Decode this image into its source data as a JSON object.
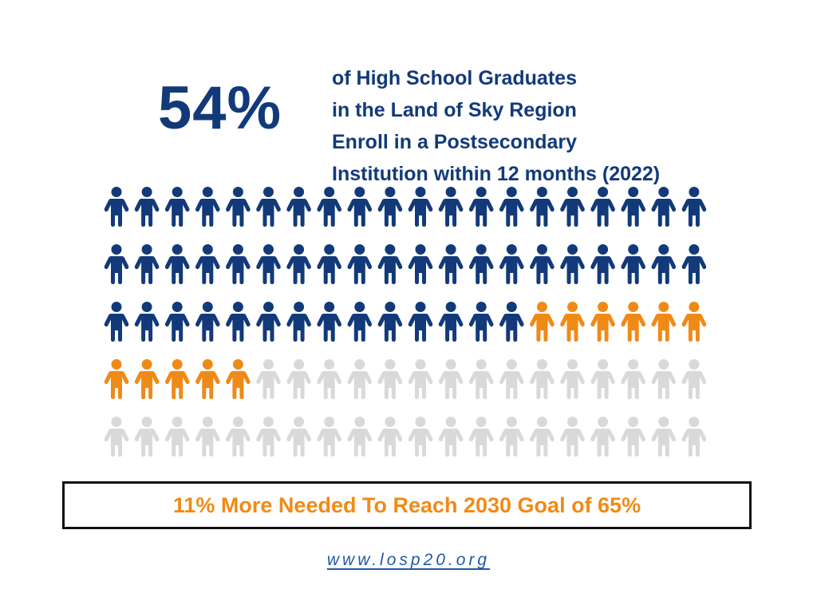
{
  "header": {
    "big_stat": "54%",
    "lines": [
      "of High School Graduates",
      "in the Land of Sky Region",
      "Enroll in a Postsecondary",
      "Institution within 12 months (2022)"
    ]
  },
  "chart_data": {
    "type": "pictogram",
    "rows": 5,
    "columns": 20,
    "total_icons": 100,
    "categories": [
      "enrolled",
      "needed_to_reach_goal",
      "remaining"
    ],
    "values": [
      54,
      11,
      35
    ],
    "colors": {
      "enrolled": "#123a7a",
      "needed_to_reach_goal": "#f08a17",
      "remaining": "#d9d9d9"
    },
    "icon": "person-icon"
  },
  "goal": {
    "text": "11% More Needed To Reach 2030 Goal of 65%"
  },
  "footer": {
    "url": "www.losp20.org"
  }
}
